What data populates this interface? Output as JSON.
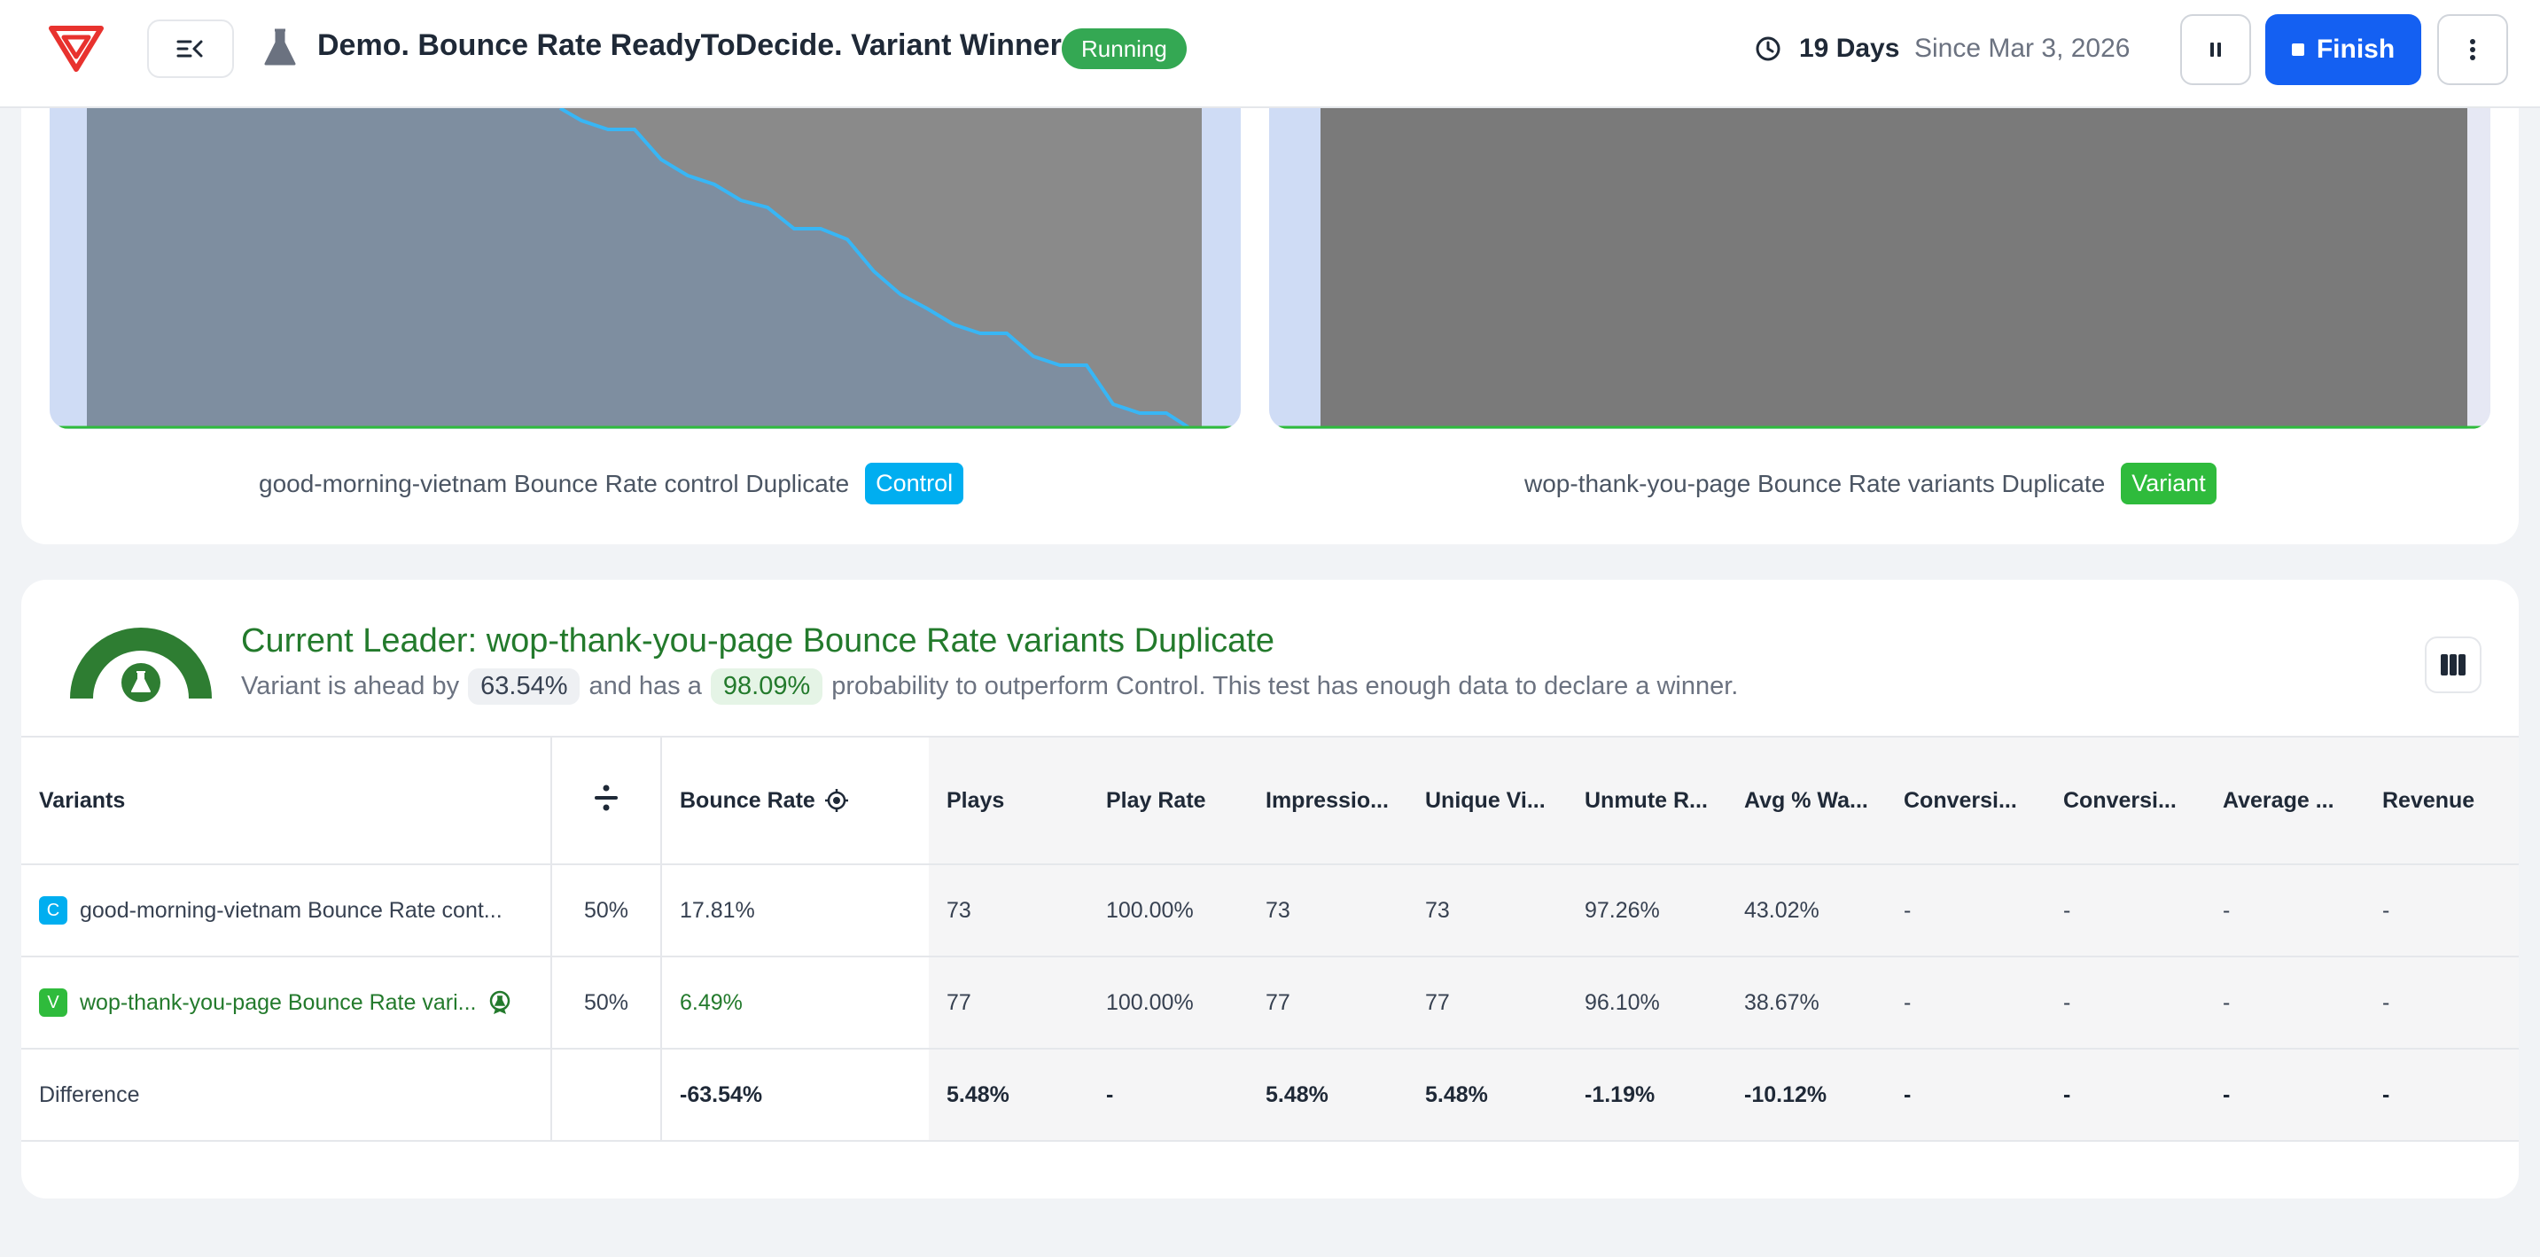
{
  "header": {
    "title": "Demo. Bounce Rate ReadyToDecide. Variant Winner",
    "status": "Running",
    "days": "19 Days",
    "since": "Since Mar 3, 2026",
    "finish_label": "Finish"
  },
  "charts": {
    "control_caption": "good-morning-vietnam Bounce Rate control Duplicate",
    "control_badge": "Control",
    "variant_caption": "wop-thank-you-page Bounce Rate variants Duplicate",
    "variant_badge": "Variant"
  },
  "leader": {
    "title": "Current Leader: wop-thank-you-page Bounce Rate variants Duplicate",
    "text_1": "Variant is ahead by",
    "ahead_value": "63.54%",
    "text_2": "and has a",
    "probability_value": "98.09%",
    "text_3": "probability to outperform Control. This test has enough data to declare a winner."
  },
  "table": {
    "headers": {
      "variants": "Variants",
      "bounce_rate": "Bounce Rate",
      "plays": "Plays",
      "play_rate": "Play Rate",
      "impressions": "Impressio...",
      "unique_visitors": "Unique Vi...",
      "unmute_rate": "Unmute R...",
      "avg_watched": "Avg % Wa...",
      "conversions_1": "Conversi...",
      "conversions_2": "Conversi...",
      "average": "Average ...",
      "revenue": "Revenue"
    },
    "rows": [
      {
        "badge": "C",
        "name": "good-morning-vietnam Bounce Rate cont...",
        "split": "50%",
        "bounce_rate": "17.81%",
        "plays": "73",
        "play_rate": "100.00%",
        "impressions": "73",
        "unique_visitors": "73",
        "unmute_rate": "97.26%",
        "avg_watched": "43.02%",
        "conversions_1": "-",
        "conversions_2": "-",
        "average": "-",
        "revenue": "-"
      },
      {
        "badge": "V",
        "name": "wop-thank-you-page Bounce Rate vari...",
        "split": "50%",
        "bounce_rate": "6.49%",
        "plays": "77",
        "play_rate": "100.00%",
        "impressions": "77",
        "unique_visitors": "77",
        "unmute_rate": "96.10%",
        "avg_watched": "38.67%",
        "conversions_1": "-",
        "conversions_2": "-",
        "average": "-",
        "revenue": "-"
      }
    ],
    "difference": {
      "label": "Difference",
      "bounce_rate": "-63.54%",
      "plays": "5.48%",
      "play_rate": "-",
      "impressions": "5.48%",
      "unique_visitors": "5.48%",
      "unmute_rate": "-1.19%",
      "avg_watched": "-10.12%",
      "conversions_1": "-",
      "conversions_2": "-",
      "average": "-",
      "revenue": "-"
    }
  },
  "colors": {
    "accent": "#1460f2",
    "control": "#00aef0",
    "variant": "#2fbb3c",
    "leader_green": "#237a2c",
    "curve_blue": "#38b6f5"
  },
  "icons": [
    "logo-icon",
    "collapse-sidebar-icon",
    "flask-icon",
    "clock-icon",
    "pause-icon",
    "stop-icon",
    "more-vertical-icon",
    "gauge-icon",
    "divide-icon",
    "target-icon",
    "award-icon",
    "columns-icon"
  ]
}
